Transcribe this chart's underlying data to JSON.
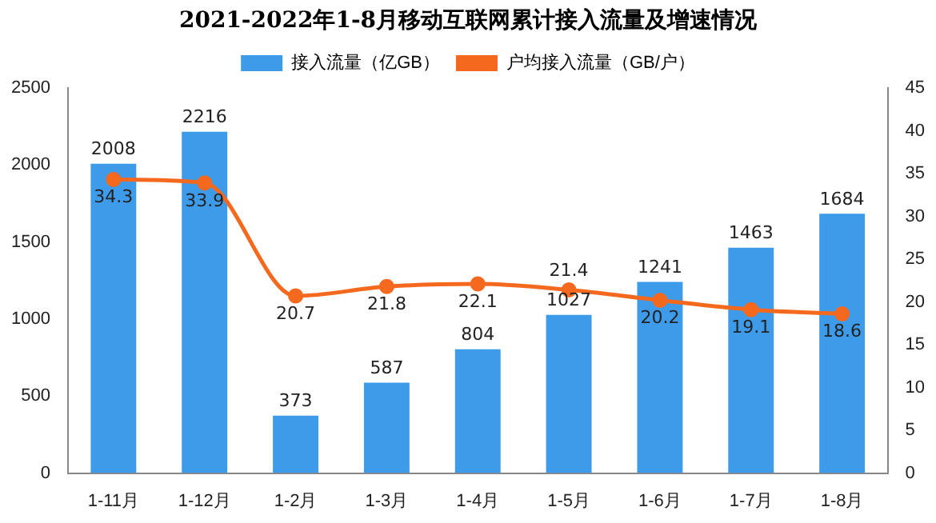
{
  "chart_data": {
    "type": "bar",
    "title": "2021-2022年1-8月移动互联网累计接入流量及增速情况",
    "categories": [
      "1-11月",
      "1-12月",
      "1-2月",
      "1-3月",
      "1-4月",
      "1-5月",
      "1-6月",
      "1-7月",
      "1-8月"
    ],
    "series": [
      {
        "name": "接入流量（亿GB）",
        "color": "#3d9be9",
        "values": [
          2008,
          2216,
          373,
          587,
          804,
          1027,
          1241,
          1463,
          1684
        ]
      },
      {
        "name": "户均接入流量（GB/户）",
        "type": "line",
        "axis": "y2",
        "color": "#f5691e",
        "values": [
          34.3,
          33.9,
          20.7,
          21.8,
          22.1,
          21.4,
          20.2,
          19.1,
          18.6
        ]
      }
    ],
    "ylim": [
      0,
      2500
    ],
    "yticks": [
      0,
      500,
      1000,
      1500,
      2000,
      2500
    ],
    "y2lim": [
      0,
      45
    ],
    "y2ticks": [
      0,
      5,
      10,
      15,
      20,
      25,
      30,
      35,
      40,
      45
    ],
    "grid": false,
    "legend": "top",
    "marker": "circle",
    "data_labels": true
  }
}
